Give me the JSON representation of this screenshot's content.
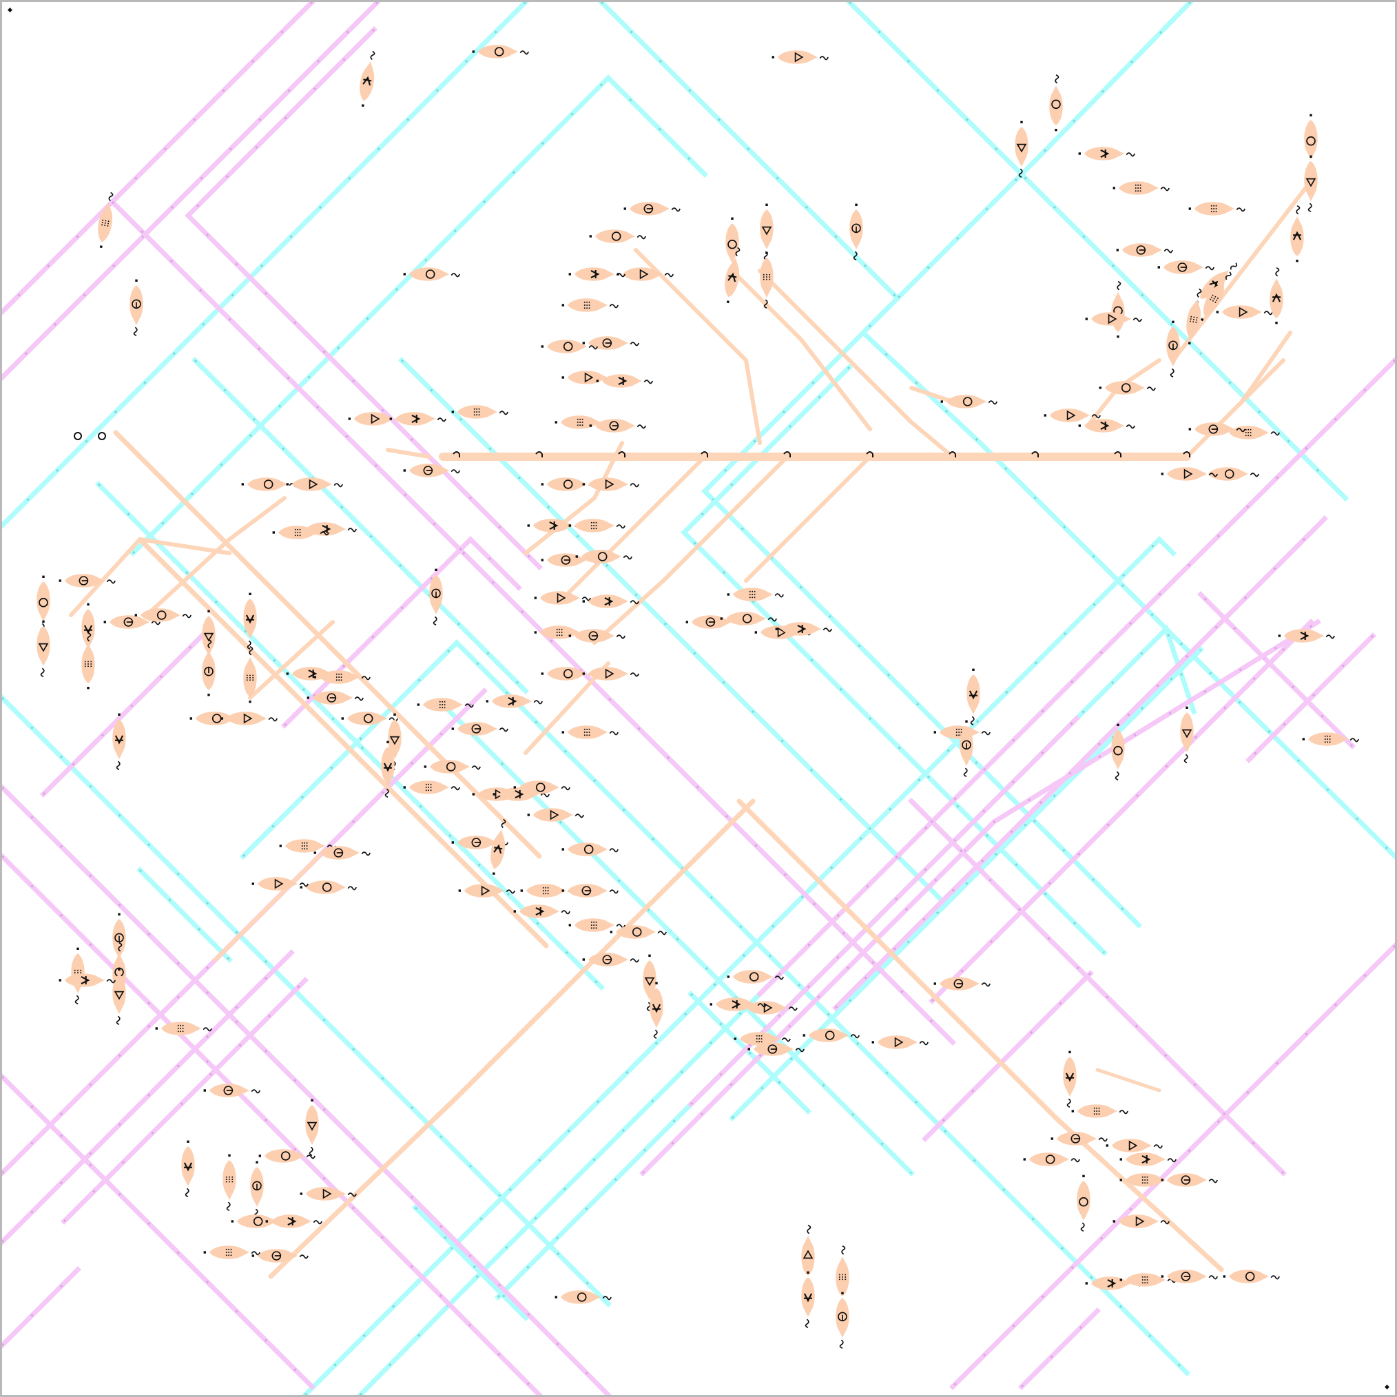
{
  "palette": {
    "background": "#ffffff",
    "frame": "#b9b9b9",
    "cyan_lane": "#aefcfc",
    "cyan_dot": "#7fd6d6",
    "pink_lane": "#f5c8f7",
    "pink_dot": "#d9a3de",
    "peach_branch": "#fdd5b8",
    "peach_blob": "#fccfb0",
    "glyph": "#111111"
  },
  "icons": {
    "corner_marker": "diamond-icon",
    "blob": "spore-creature-icon",
    "branch_node": "hook-icon",
    "tail": "squiggle-icon"
  }
}
